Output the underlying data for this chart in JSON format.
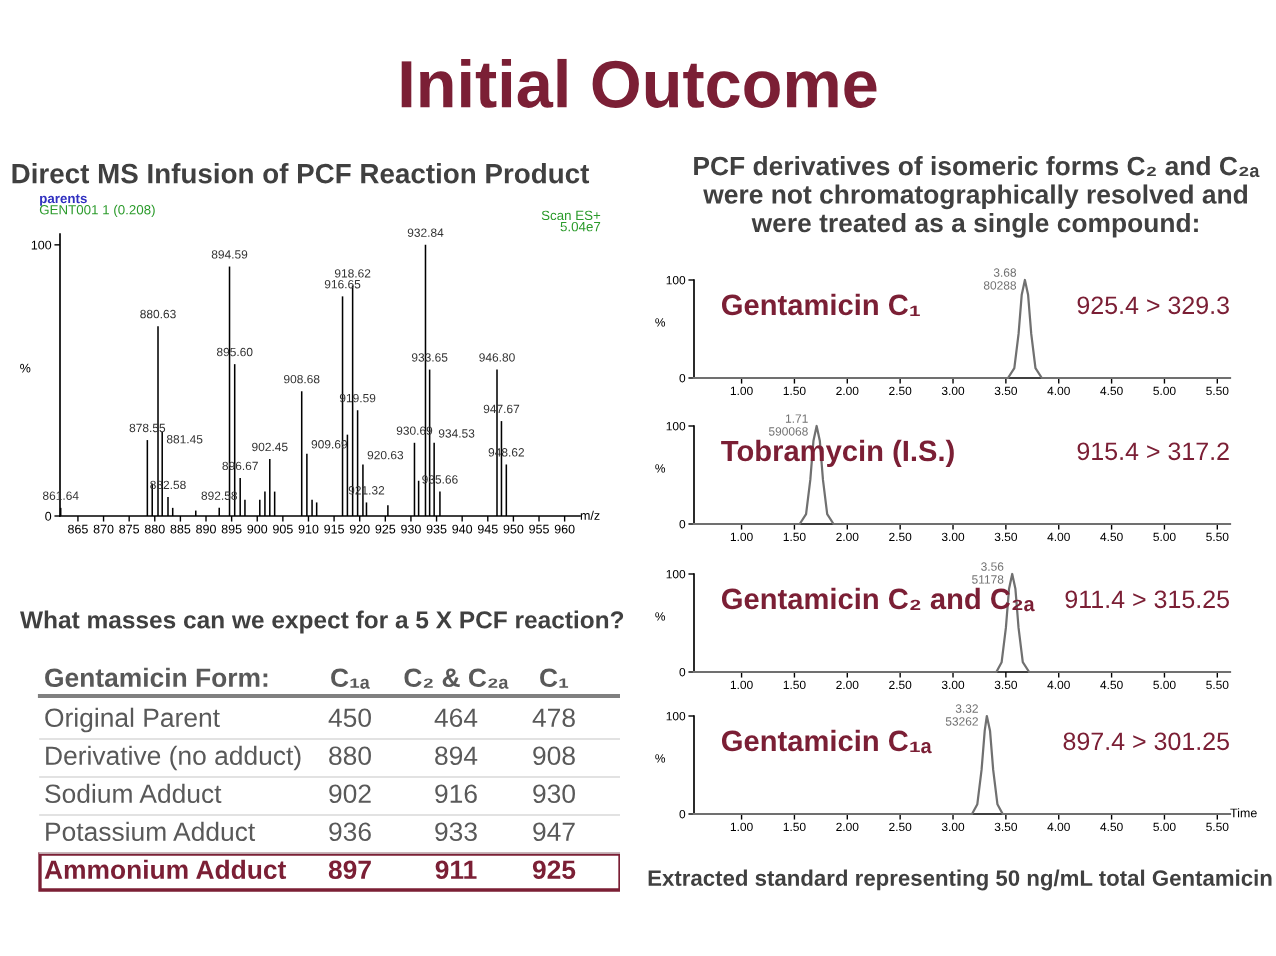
{
  "chart_data": [
    {
      "type": "bar",
      "title": "Initial Outcome",
      "subtitle": "Direct MS Infusion of PCF Reaction Product",
      "xlabel": "m/z",
      "ylabel": "%",
      "color": "#000000",
      "x": [
        861.64,
        878.55,
        879.5,
        880.63,
        881.45,
        882.58,
        883.5,
        888.0,
        892.58,
        894.59,
        895.6,
        896.67,
        897.6,
        900.5,
        901.5,
        902.45,
        903.4,
        908.68,
        909.69,
        910.7,
        911.6,
        916.65,
        917.6,
        918.62,
        919.59,
        920.63,
        921.32,
        925.5,
        930.69,
        931.5,
        932.84,
        933.65,
        934.53,
        935.66,
        946.8,
        947.67,
        948.62
      ],
      "values": [
        3,
        28,
        12,
        70,
        31,
        7,
        3,
        2,
        3,
        92,
        56,
        14,
        6,
        6,
        9,
        21,
        9,
        46,
        23,
        6,
        5,
        81,
        30,
        85,
        39,
        19,
        5,
        4,
        27,
        13,
        100,
        54,
        27,
        9,
        54,
        35,
        19
      ],
      "xlim": [
        861.5,
        963
      ],
      "xticks": [
        865,
        870,
        875,
        880,
        885,
        890,
        895,
        900,
        905,
        910,
        915,
        920,
        925,
        930,
        935,
        940,
        945,
        950,
        955,
        960
      ],
      "ylim": [
        0,
        104
      ],
      "yticks": [
        0,
        100
      ],
      "annotations": [
        "parents",
        "GENT001 1 (0.208)",
        "Scan ES+",
        "5.04e7",
        {
          "text": "861.64",
          "x": 861.64,
          "y": 3
        },
        {
          "text": "878.55",
          "x": 878.55,
          "y": 28
        },
        {
          "text": "880.63",
          "x": 880.63,
          "y": 70
        },
        {
          "text": "881.45",
          "x": 881.45,
          "y": 31
        },
        {
          "text": "882.58",
          "x": 882.58,
          "y": 7
        },
        {
          "text": "892.58",
          "x": 892.58,
          "y": 3
        },
        {
          "text": "894.59",
          "x": 894.59,
          "y": 92
        },
        {
          "text": "895.60",
          "x": 895.6,
          "y": 56
        },
        {
          "text": "896.67",
          "x": 896.67,
          "y": 14
        },
        {
          "text": "902.45",
          "x": 902.45,
          "y": 21
        },
        {
          "text": "908.68",
          "x": 908.68,
          "y": 46
        },
        {
          "text": "909.69",
          "x": 909.69,
          "y": 23
        },
        {
          "text": "916.65",
          "x": 916.65,
          "y": 81
        },
        {
          "text": "918.62",
          "x": 918.62,
          "y": 85
        },
        {
          "text": "919.59",
          "x": 919.59,
          "y": 39
        },
        {
          "text": "920.63",
          "x": 920.63,
          "y": 19
        },
        {
          "text": "921.32",
          "x": 921.32,
          "y": 5
        },
        {
          "text": "930.69",
          "x": 930.69,
          "y": 27
        },
        {
          "text": "932.84",
          "x": 932.84,
          "y": 100
        },
        {
          "text": "933.65",
          "x": 933.65,
          "y": 54
        },
        {
          "text": "934.53",
          "x": 934.53,
          "y": 27
        },
        {
          "text": "935.66",
          "x": 935.66,
          "y": 9
        },
        {
          "text": "946.80",
          "x": 946.8,
          "y": 54
        },
        {
          "text": "947.67",
          "x": 947.67,
          "y": 35
        },
        {
          "text": "948.62",
          "x": 948.62,
          "y": 19
        }
      ]
    },
    {
      "type": "other",
      "title": "What masses can we expect for a 5 X PCF reaction?",
      "legend_title": "Gentamicin Form:",
      "categories": [
        "Original Parent",
        "Derivative (no adduct)",
        "Sodium Adduct",
        "Potassium Adduct",
        "Ammonium Adduct"
      ],
      "series": [
        {
          "name": "C₁ₐ",
          "values": [
            450,
            880,
            902,
            936,
            897
          ]
        },
        {
          "name": "C₂ & C₂ₐ",
          "values": [
            464,
            894,
            916,
            933,
            911
          ]
        },
        {
          "name": "C₁",
          "values": [
            478,
            908,
            930,
            947,
            925
          ]
        }
      ],
      "data_labels": true,
      "colors": [
        "#595959",
        "#595959",
        "#595959",
        "#595959",
        "#7b1f35"
      ]
    },
    {
      "type": "line",
      "title": "Gentamicin C₁",
      "subtitle": "PCF derivatives of isomeric forms C₂ and C₂ₐ were not chromatographically resolved and were treated as a single compound:",
      "ylabel": "%",
      "color": "#707070",
      "x": [
        0.55,
        3.52,
        3.58,
        3.62,
        3.65,
        3.68,
        3.71,
        3.74,
        3.78,
        3.84,
        5.62
      ],
      "values": [
        0,
        0,
        10,
        45,
        85,
        100,
        85,
        45,
        10,
        0,
        0
      ],
      "xlim": [
        0.55,
        5.62
      ],
      "xticks": [
        {
          "value": 1,
          "label": "1.00"
        },
        {
          "value": 1.5,
          "label": "1.50"
        },
        {
          "value": 2,
          "label": "2.00"
        },
        {
          "value": 2.5,
          "label": "2.50"
        },
        {
          "value": 3,
          "label": "3.00"
        },
        {
          "value": 3.5,
          "label": "3.50"
        },
        {
          "value": 4,
          "label": "4.00"
        },
        {
          "value": 4.5,
          "label": "4.50"
        },
        {
          "value": 5,
          "label": "5.00"
        },
        {
          "value": 5.5,
          "label": "5.50"
        }
      ],
      "ylim": [
        0,
        100
      ],
      "yticks": [
        0,
        100
      ],
      "annotations": [
        "925.4 > 329.3",
        {
          "text": "3.68\n80288",
          "x": 3.68,
          "y": 100
        }
      ]
    },
    {
      "type": "line",
      "title": "Tobramycin (I.S.)",
      "ylabel": "%",
      "color": "#707070",
      "x": [
        0.55,
        1.55,
        1.61,
        1.65,
        1.68,
        1.71,
        1.74,
        1.77,
        1.81,
        1.87,
        5.62
      ],
      "values": [
        0,
        0,
        10,
        45,
        85,
        100,
        85,
        45,
        10,
        0,
        0
      ],
      "xlim": [
        0.55,
        5.62
      ],
      "xticks": [
        {
          "value": 1,
          "label": "1.00"
        },
        {
          "value": 1.5,
          "label": "1.50"
        },
        {
          "value": 2,
          "label": "2.00"
        },
        {
          "value": 2.5,
          "label": "2.50"
        },
        {
          "value": 3,
          "label": "3.00"
        },
        {
          "value": 3.5,
          "label": "3.50"
        },
        {
          "value": 4,
          "label": "4.00"
        },
        {
          "value": 4.5,
          "label": "4.50"
        },
        {
          "value": 5,
          "label": "5.00"
        },
        {
          "value": 5.5,
          "label": "5.50"
        }
      ],
      "ylim": [
        0,
        100
      ],
      "yticks": [
        0,
        100
      ],
      "annotations": [
        "915.4 > 317.2",
        {
          "text": "1.71\n590068",
          "x": 1.71,
          "y": 100
        }
      ]
    },
    {
      "type": "line",
      "title": "Gentamicin C₂ and C₂ₐ",
      "ylabel": "%",
      "color": "#707070",
      "x": [
        0.55,
        3.41,
        3.46,
        3.5,
        3.53,
        3.56,
        3.59,
        3.62,
        3.66,
        3.72,
        5.62
      ],
      "values": [
        0,
        0,
        10,
        45,
        85,
        100,
        85,
        45,
        10,
        0,
        0
      ],
      "xlim": [
        0.55,
        5.62
      ],
      "xticks": [
        {
          "value": 1,
          "label": "1.00"
        },
        {
          "value": 1.5,
          "label": "1.50"
        },
        {
          "value": 2,
          "label": "2.00"
        },
        {
          "value": 2.5,
          "label": "2.50"
        },
        {
          "value": 3,
          "label": "3.00"
        },
        {
          "value": 3.5,
          "label": "3.50"
        },
        {
          "value": 4,
          "label": "4.00"
        },
        {
          "value": 4.5,
          "label": "4.50"
        },
        {
          "value": 5,
          "label": "5.00"
        },
        {
          "value": 5.5,
          "label": "5.50"
        }
      ],
      "ylim": [
        0,
        100
      ],
      "yticks": [
        0,
        100
      ],
      "annotations": [
        "911.4 > 315.25",
        {
          "text": "3.56\n51178",
          "x": 3.56,
          "y": 100
        }
      ]
    },
    {
      "type": "line",
      "title": "Gentamicin C₁ₐ",
      "ylabel": "%",
      "xlabel": "Time",
      "color": "#707070",
      "x": [
        0.55,
        3.18,
        3.23,
        3.27,
        3.3,
        3.32,
        3.35,
        3.38,
        3.42,
        3.47,
        5.62
      ],
      "values": [
        0,
        0,
        10,
        45,
        85,
        100,
        85,
        45,
        10,
        0,
        0
      ],
      "xlim": [
        0.55,
        5.62
      ],
      "xticks": [
        {
          "value": 1,
          "label": "1.00"
        },
        {
          "value": 1.5,
          "label": "1.50"
        },
        {
          "value": 2,
          "label": "2.00"
        },
        {
          "value": 2.5,
          "label": "2.50"
        },
        {
          "value": 3,
          "label": "3.00"
        },
        {
          "value": 3.5,
          "label": "3.50"
        },
        {
          "value": 4,
          "label": "4.00"
        },
        {
          "value": 4.5,
          "label": "4.50"
        },
        {
          "value": 5,
          "label": "5.00"
        },
        {
          "value": 5.5,
          "label": "5.50"
        }
      ],
      "ylim": [
        0,
        100
      ],
      "yticks": [
        0,
        100
      ],
      "annotations": [
        "897.4 > 301.25",
        {
          "text": "3.32\n53262",
          "x": 3.32,
          "y": 100
        },
        "Extracted standard representing 50 ng/mL total Gentamicin"
      ]
    }
  ]
}
